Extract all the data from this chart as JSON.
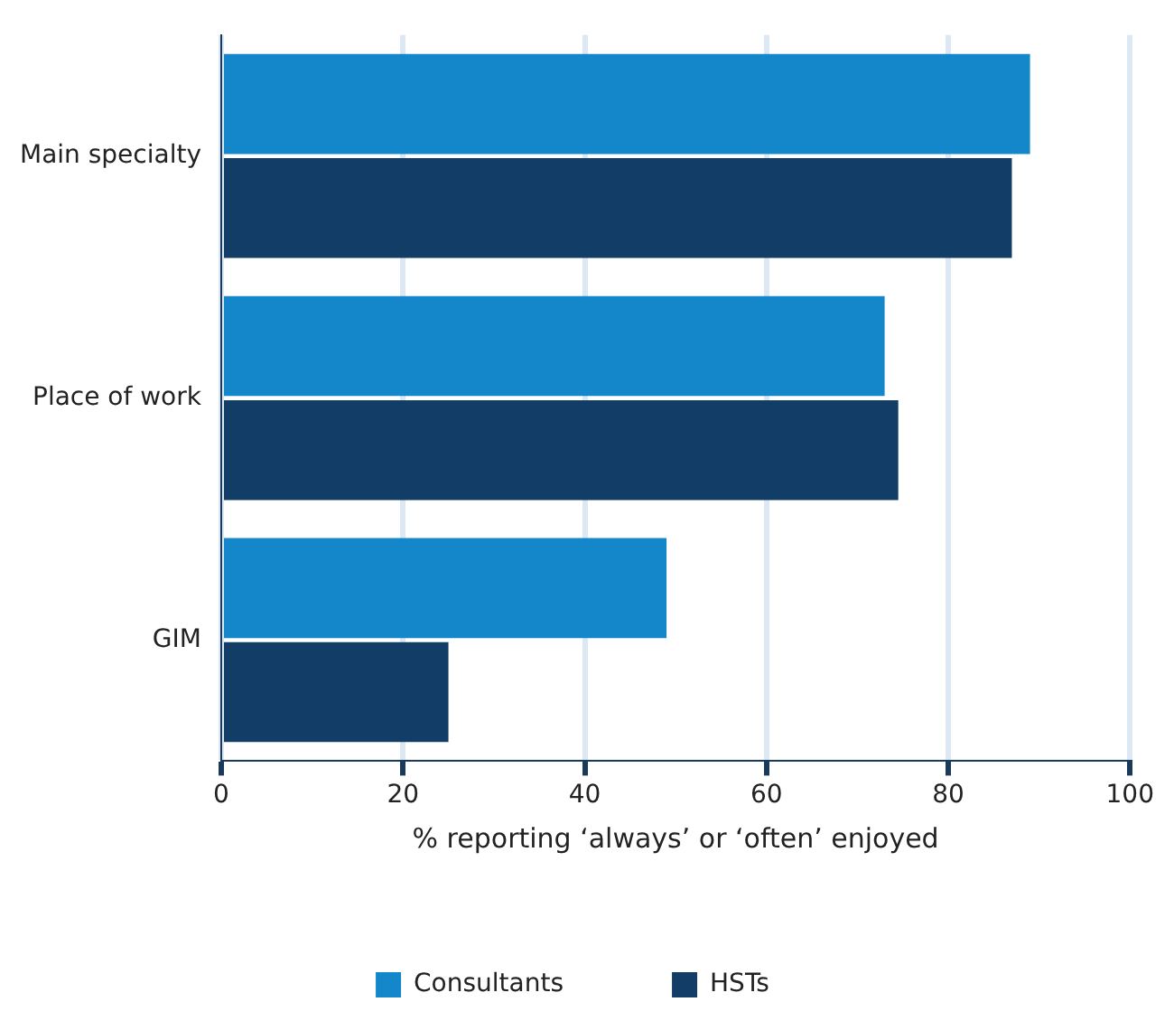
{
  "chart_data": {
    "type": "bar",
    "orientation": "horizontal",
    "xlabel": "% reporting ‘always’ or ‘often’ enjoyed",
    "categories": [
      "Main specialty",
      "Place of work",
      "GIM"
    ],
    "series": [
      {
        "name": "Consultants",
        "color": "#1387c9",
        "values": [
          89,
          73,
          49
        ]
      },
      {
        "name": "HSTs",
        "color": "#123d66",
        "values": [
          87,
          74.5,
          25
        ]
      }
    ],
    "xlim": [
      0,
      100
    ],
    "xticks": [
      0,
      20,
      40,
      60,
      80,
      100
    ],
    "grid": "x",
    "legend": "bottom"
  }
}
